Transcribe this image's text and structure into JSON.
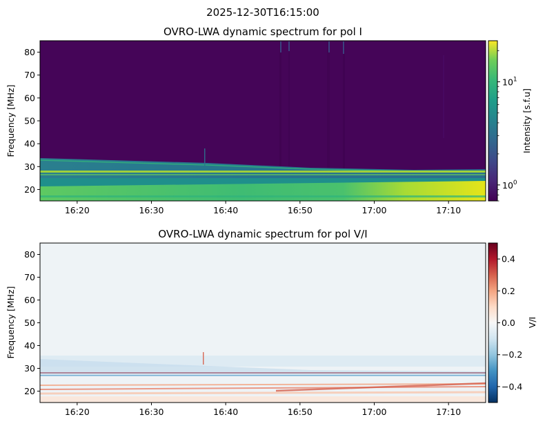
{
  "suptitle": "2025-12-30T16:15:00",
  "chart_data": [
    {
      "type": "heatmap",
      "title": "OVRO-LWA dynamic spectrum for pol I",
      "ylabel": "Frequency [MHz]",
      "xlabel": "",
      "xlim": [
        "16:15",
        "17:15"
      ],
      "ylim": [
        15,
        85
      ],
      "xticks": [
        "16:20",
        "16:30",
        "16:40",
        "16:50",
        "17:00",
        "17:10"
      ],
      "yticks": [
        20,
        30,
        40,
        50,
        60,
        70,
        80
      ],
      "colormap": "viridis",
      "colorbar": {
        "label": "Intensity [s.f.u]",
        "scale": "log",
        "range": [
          0.7,
          25
        ],
        "ticks": [
          {
            "label": "10",
            "exp": "0",
            "value": 1
          },
          {
            "label": "10",
            "exp": "1",
            "value": 10
          }
        ]
      },
      "features": [
        {
          "desc": "low background",
          "freq_range": [
            33,
            85
          ],
          "intensity": 0.9
        },
        {
          "desc": "bright emission band",
          "freq_range": [
            15,
            33
          ],
          "intensity": 8
        },
        {
          "desc": "strongest band growing late",
          "time_range": [
            "16:58",
            "17:15"
          ],
          "freq_range": [
            15,
            24
          ],
          "intensity": 20
        }
      ]
    },
    {
      "type": "heatmap",
      "title": "OVRO-LWA dynamic spectrum for pol V/I",
      "ylabel": "Frequency [MHz]",
      "xlabel": "",
      "xlim": [
        "16:15",
        "17:15"
      ],
      "ylim": [
        15,
        85
      ],
      "xticks": [
        "16:20",
        "16:30",
        "16:40",
        "16:50",
        "17:00",
        "17:10"
      ],
      "yticks": [
        20,
        30,
        40,
        50,
        60,
        70,
        80
      ],
      "colormap": "RdBu_r",
      "colorbar": {
        "label": "V/I",
        "scale": "linear",
        "range": [
          -0.5,
          0.5
        ],
        "ticks": [
          {
            "label": "0.4",
            "value": 0.4
          },
          {
            "label": "0.2",
            "value": 0.2
          },
          {
            "label": "0.0",
            "value": 0.0
          },
          {
            "label": "−0.2",
            "value": -0.2
          },
          {
            "label": "−0.4",
            "value": -0.4
          }
        ]
      }
    }
  ]
}
